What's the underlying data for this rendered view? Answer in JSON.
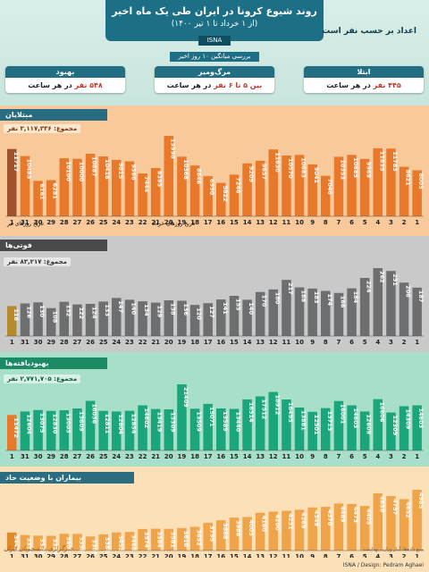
{
  "header": {
    "title": "روند شیوع کرونا در ایران طی یک ماه اخیر",
    "subtitle": "(از ۱ خرداد تا ۱ تیر ۱۴۰۰)",
    "isna": "ISNA",
    "unit_note": "اعداد بر حسب نفر است",
    "mid_label": "بررسی میانگین ۱۰ روز اخیر"
  },
  "summary": [
    {
      "label": "ابتلا",
      "value": "۴۴۵ نفر",
      "suffix": " در هر ساعت"
    },
    {
      "label": "مرگ‌ومیر",
      "value": "بین ۵ تا ۶ نفر",
      "suffix": " در هر ساعت"
    },
    {
      "label": "بهبود",
      "value": "۵۴۸ نفر",
      "suffix": " در هر ساعت"
    }
  ],
  "colors": {
    "infected": "#e8792b",
    "deaths": "#6d6e70",
    "recovered": "#1ba57a",
    "hospital": "#f0a44a"
  },
  "chart_data": [
    {
      "type": "bar",
      "title": "مبتلایان",
      "total": "مجموع: ۳,۱۱۷,۳۳۶ نفر",
      "x_label_left": "تاریخ روزهای تیر",
      "x_label_right": "تاریخ روزهای خرداد",
      "categories": [
        "1",
        "31",
        "30",
        "29",
        "28",
        "27",
        "26",
        "25",
        "24",
        "23",
        "22",
        "21",
        "20",
        "19",
        "18",
        "17",
        "16",
        "15",
        "14",
        "13",
        "12",
        "11",
        "10",
        "9",
        "8",
        "7",
        "6",
        "5",
        "4",
        "3",
        "2",
        "1"
      ],
      "values": [
        11717,
        10485,
        6161,
        6281,
        10100,
        10000,
        10887,
        10416,
        9815,
        9566,
        7444,
        8395,
        13998,
        10368,
        8846,
        6990,
        5822,
        7246,
        9209,
        9657,
        11630,
        10570,
        10683,
        9041,
        7046,
        10353,
        10685,
        9969,
        11835,
        11783,
        8621,
        8005
      ]
    },
    {
      "type": "bar",
      "title": "فوتی‌ها",
      "total": "مجموع: ۸۳,۲۱۷ نفر",
      "categories": [
        "1",
        "31",
        "30",
        "29",
        "28",
        "27",
        "26",
        "25",
        "24",
        "23",
        "22",
        "21",
        "20",
        "19",
        "18",
        "17",
        "16",
        "15",
        "14",
        "13",
        "12",
        "11",
        "10",
        "9",
        "8",
        "7",
        "6",
        "5",
        "4",
        "3",
        "2",
        "1"
      ],
      "values": [
        116,
        126,
        130,
        108,
        132,
        122,
        124,
        133,
        147,
        140,
        134,
        129,
        138,
        136,
        120,
        127,
        141,
        155,
        140,
        170,
        180,
        217,
        188,
        183,
        174,
        166,
        184,
        224,
        262,
        251,
        206,
        187
      ]
    },
    {
      "type": "bar",
      "title": "بهبودیافته‌ها",
      "total": "مجموع: ۲,۷۷۱,۷۰۵ نفر",
      "categories": [
        "1",
        "31",
        "30",
        "29",
        "28",
        "27",
        "26",
        "25",
        "24",
        "23",
        "22",
        "21",
        "20",
        "19",
        "18",
        "17",
        "16",
        "15",
        "14",
        "13",
        "12",
        "11",
        "10",
        "9",
        "8",
        "7",
        "6",
        "5",
        "4",
        "3",
        "2",
        "1"
      ],
      "values": [
        11472,
        12604,
        13075,
        12830,
        13005,
        13609,
        16056,
        12811,
        12604,
        12854,
        14602,
        13419,
        13309,
        21409,
        13509,
        15071,
        13589,
        13440,
        16514,
        17512,
        18912,
        16495,
        13881,
        12501,
        13713,
        16001,
        14603,
        12609,
        16606,
        12309,
        14309,
        14603
      ]
    },
    {
      "type": "bar",
      "title": "بیماران با وضعیت حاد",
      "total": "",
      "categories": [
        "1",
        "31",
        "30",
        "29",
        "28",
        "27",
        "26",
        "25",
        "24",
        "23",
        "22",
        "21",
        "20",
        "19",
        "18",
        "17",
        "16",
        "15",
        "14",
        "13",
        "12",
        "11",
        "10",
        "9",
        "8",
        "7",
        "6",
        "5",
        "4",
        "3",
        "2",
        "1"
      ],
      "values": [
        3449,
        3359,
        3338,
        3329,
        3404,
        3398,
        3305,
        3384,
        3452,
        3468,
        3574,
        3584,
        3581,
        3610,
        3652,
        3799,
        3888,
        3986,
        4005,
        4160,
        4200,
        4231,
        4269,
        4349,
        4370,
        4489,
        4473,
        4405,
        4858,
        4757,
        4652,
        4985
      ]
    }
  ],
  "footer": {
    "credits": "ISNA / Design: Pedram Aghaei",
    "source": "منبع داده‌ها: آمار وزارت بهداشت",
    "logo_text": "خبرگزاری دانشجویان ایران"
  }
}
